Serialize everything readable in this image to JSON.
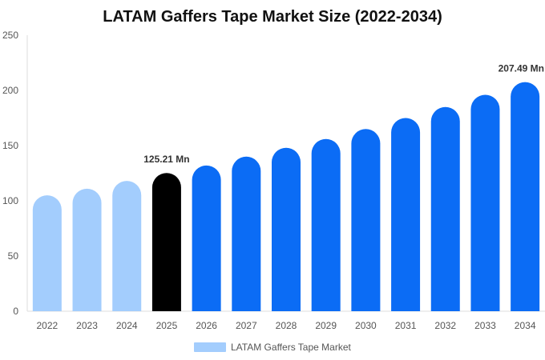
{
  "chart_data": {
    "type": "bar",
    "title": "LATAM Gaffers Tape Market Size (2022-2034)",
    "xlabel": "",
    "ylabel": "",
    "ylim": [
      0,
      250
    ],
    "yticks": [
      0,
      50,
      100,
      150,
      200,
      250
    ],
    "categories": [
      "2022",
      "2023",
      "2024",
      "2025",
      "2026",
      "2027",
      "2028",
      "2029",
      "2030",
      "2031",
      "2032",
      "2033",
      "2034"
    ],
    "series": [
      {
        "name": "LATAM Gaffers Tape Market",
        "values": [
          105,
          111,
          118,
          125.21,
          132,
          140,
          148,
          156,
          165,
          175,
          185,
          196,
          207.49
        ]
      }
    ],
    "data_labels": [
      {
        "category": "2025",
        "text": "125.21 Mn"
      },
      {
        "category": "2034",
        "text": "207.49 Mn"
      }
    ],
    "bar_colors": {
      "historical": "#a3cdfd",
      "current": "#000000",
      "forecast": "#0b6cf5"
    },
    "bar_color_groups": [
      "historical",
      "historical",
      "historical",
      "current",
      "forecast",
      "forecast",
      "forecast",
      "forecast",
      "forecast",
      "forecast",
      "forecast",
      "forecast",
      "forecast"
    ],
    "legend": {
      "position": "bottom",
      "swatch_color": "#a3cdfd"
    },
    "grid": false
  }
}
